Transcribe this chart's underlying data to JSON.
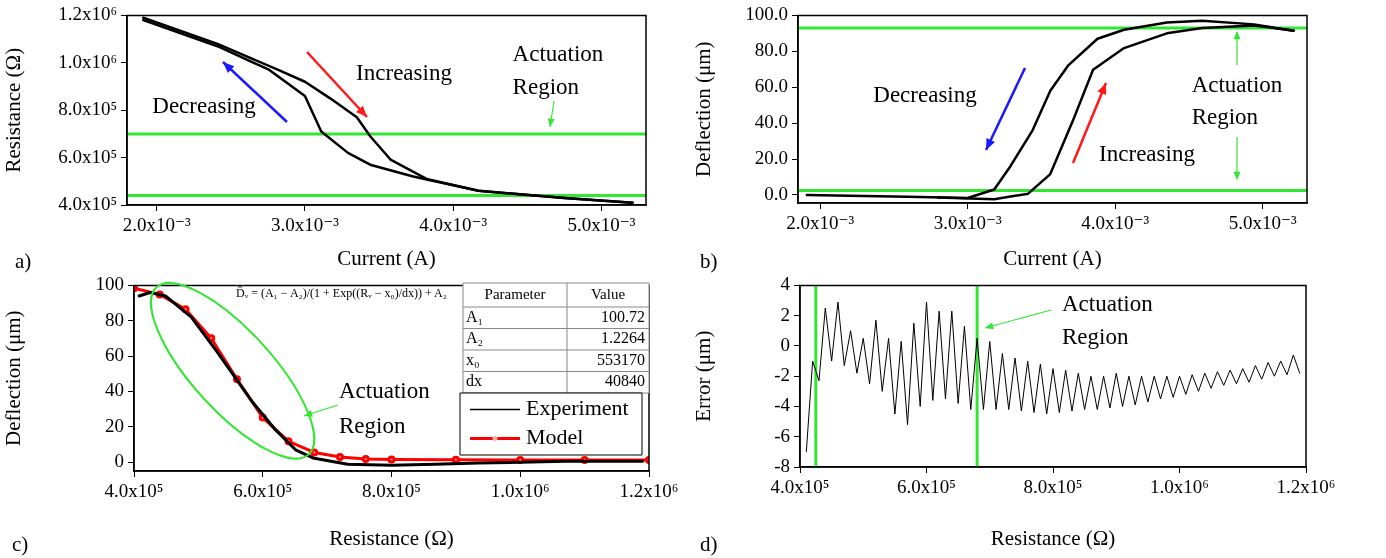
{
  "chart_data": [
    {
      "type": "line",
      "xlabel": "Current (A)",
      "ylabel": "Resistance (Ω)",
      "xlim": [
        0.0018,
        0.0053
      ],
      "ylim": [
        400000,
        1200000
      ],
      "xticks": [
        {
          "value": 0.002,
          "label": "2.0x10⁻³"
        },
        {
          "value": 0.003,
          "label": "3.0x10⁻³"
        },
        {
          "value": 0.004,
          "label": "4.0x10⁻³"
        },
        {
          "value": 0.005,
          "label": "5.0x10⁻³"
        }
      ],
      "yticks": [
        {
          "value": 400000,
          "label": "4.0x10⁵"
        },
        {
          "value": 600000,
          "label": "6.0x10⁵"
        },
        {
          "value": 800000,
          "label": "8.0x10⁵"
        },
        {
          "value": 1000000,
          "label": "1.0x10⁶"
        },
        {
          "value": 1200000,
          "label": "1.2x10⁶"
        }
      ],
      "series": [
        {
          "name": "Increasing",
          "color": "#000000",
          "x": [
            0.00191,
            0.00241,
            0.00282,
            0.003,
            0.00317,
            0.00335,
            0.00344,
            0.00358,
            0.00382,
            0.00417,
            0.00475,
            0.00521
          ],
          "values": [
            1190000,
            1080000,
            970000,
            920000,
            850000,
            770000,
            690000,
            590000,
            510000,
            460000,
            430000,
            410000
          ]
        },
        {
          "name": "Decreasing",
          "color": "#000000",
          "x": [
            0.00191,
            0.00241,
            0.00276,
            0.003,
            0.00311,
            0.00329,
            0.00344,
            0.00373,
            0.00417,
            0.00475,
            0.00521
          ],
          "values": [
            1180000,
            1070000,
            970000,
            860000,
            710000,
            620000,
            570000,
            520000,
            460000,
            430000,
            410000
          ]
        }
      ],
      "ref_lines": [
        {
          "axis": "y",
          "value": 700000,
          "color": "#33e633"
        },
        {
          "axis": "y",
          "value": 440000,
          "color": "#33e633"
        }
      ],
      "annotations": [
        "a)",
        {
          "text": "Actuation Region",
          "x": 0.00465,
          "y": 700000
        }
      ]
    },
    {
      "type": "line",
      "xlabel": "Current (A)",
      "ylabel": "Deflection (μm)",
      "xlim": [
        0.00185,
        0.0053
      ],
      "ylim": [
        -4.5,
        100
      ],
      "xticks": [
        {
          "value": 0.002,
          "label": "2.0x10⁻³"
        },
        {
          "value": 0.003,
          "label": "3.0x10⁻³"
        },
        {
          "value": 0.004,
          "label": "4.0x10⁻³"
        },
        {
          "value": 0.005,
          "label": "5.0x10⁻³"
        }
      ],
      "yticks": [
        {
          "value": 0,
          "label": "0.0"
        },
        {
          "value": 20,
          "label": "20.0"
        },
        {
          "value": 40,
          "label": "40.0"
        },
        {
          "value": 60,
          "label": "60.0"
        },
        {
          "value": 80,
          "label": "80.0"
        },
        {
          "value": 100,
          "label": "100.0"
        }
      ],
      "series": [
        {
          "name": "Decreasing",
          "color": "#000000",
          "x": [
            0.00191,
            0.00259,
            0.003,
            0.00318,
            0.00329,
            0.00344,
            0.00356,
            0.00368,
            0.00388,
            0.00406,
            0.00435,
            0.00459,
            0.00494,
            0.00521
          ],
          "values": [
            0,
            -1,
            -1.7,
            3,
            16,
            36,
            58,
            72,
            87,
            92,
            96,
            97,
            95,
            91.5
          ]
        },
        {
          "name": "Increasing",
          "color": "#000000",
          "x": [
            0.0028,
            0.00318,
            0.00341,
            0.00356,
            0.00371,
            0.00385,
            0.00406,
            0.00435,
            0.00459,
            0.00494,
            0.00521
          ],
          "values": [
            -1.5,
            -2.4,
            0.7,
            11.6,
            40.7,
            69.7,
            81.8,
            90,
            93,
            94.4,
            91.5
          ]
        }
      ],
      "ref_lines": [
        {
          "axis": "y",
          "value": 93,
          "color": "#33e633"
        },
        {
          "axis": "y",
          "value": 2.5,
          "color": "#33e633"
        }
      ],
      "annotations": [
        "b)",
        {
          "text": "Actuation Region",
          "x": 0.00483,
          "y": 93
        }
      ]
    },
    {
      "type": "line",
      "xlabel": "Resistance (Ω)",
      "ylabel": "Deflection (μm)",
      "xlim": [
        400000,
        1200000
      ],
      "ylim": [
        -5,
        100
      ],
      "xticks": [
        {
          "value": 400000,
          "label": "4.0x10⁵"
        },
        {
          "value": 600000,
          "label": "6.0x10⁵"
        },
        {
          "value": 800000,
          "label": "8.0x10⁵"
        },
        {
          "value": 1000000,
          "label": "1.0x10⁶"
        },
        {
          "value": 1200000,
          "label": "1.2x10⁶"
        }
      ],
      "yticks": [
        0,
        20,
        40,
        60,
        80,
        100
      ],
      "legend": "bottom right",
      "series": [
        {
          "name": "Experiment",
          "color": "#000000",
          "x": [
            408000,
            425000,
            449000,
            489000,
            530000,
            557000,
            584000,
            618000,
            651000,
            678000,
            732000,
            800000,
            868000,
            935000,
            1000000,
            1070000,
            1190000
          ],
          "values": [
            94,
            96,
            94,
            82,
            62,
            48,
            34,
            19,
            7,
            2.4,
            -1.2,
            -1.7,
            -1.2,
            -0.5,
            0,
            0.5,
            0.5
          ]
        },
        {
          "name": "Model",
          "color": "#ff0000",
          "marker": "circle",
          "x": [
            400000,
            440000,
            480000,
            520000,
            560000,
            600000,
            640000,
            680000,
            720000,
            760000,
            800000,
            900000,
            1000000,
            1100000,
            1200000
          ],
          "values": [
            98.4,
            94.9,
            86.5,
            70.1,
            46.9,
            25.2,
            11.8,
            5.5,
            2.9,
            1.8,
            1.5,
            1.3,
            1.2,
            1.2,
            1.2
          ]
        }
      ],
      "annotations": [
        "c)",
        "D̂ᵥ = (A₁ − A₂)/(1 + Exp((Rᵥ − x₀)/dx)) + A₂",
        "Parameter",
        "Value",
        "A₁",
        "100.72",
        "A₂",
        "1.2264",
        "x₀",
        "553170",
        "dx",
        "40840",
        "Actuation Region"
      ]
    },
    {
      "type": "line",
      "xlabel": "Resistance (Ω)",
      "ylabel": "Error (μm)",
      "xlim": [
        400000,
        1200000
      ],
      "ylim": [
        -8,
        4
      ],
      "xticks": [
        {
          "value": 400000,
          "label": "4.0x10⁵"
        },
        {
          "value": 600000,
          "label": "6.0x10⁵"
        },
        {
          "value": 800000,
          "label": "8.0x10⁵"
        },
        {
          "value": 1000000,
          "label": "1.0x10⁶"
        },
        {
          "value": 1200000,
          "label": "1.2x10⁶"
        }
      ],
      "yticks": [
        -8,
        -6,
        -4,
        -2,
        0,
        2,
        4
      ],
      "series": [
        {
          "color": "#000000",
          "x": [
            410000,
            420000,
            430000,
            440000,
            450000,
            460000,
            470000,
            480000,
            490000,
            500000,
            510000,
            520000,
            530000,
            540000,
            550000,
            560000,
            570000,
            580000,
            590000,
            600000,
            610000,
            620000,
            630000,
            640000,
            650000,
            660000,
            670000,
            680000,
            690000,
            700000,
            710000,
            720000,
            730000,
            740000,
            750000,
            760000,
            770000,
            780000,
            790000,
            800000,
            810000,
            820000,
            830000,
            840000,
            850000,
            860000,
            870000,
            880000,
            890000,
            900000,
            910000,
            920000,
            930000,
            940000,
            950000,
            960000,
            970000,
            980000,
            990000,
            1000000,
            1010000,
            1020000,
            1030000,
            1040000,
            1050000,
            1060000,
            1070000,
            1080000,
            1090000,
            1100000,
            1110000,
            1120000,
            1130000,
            1140000,
            1150000,
            1160000,
            1170000,
            1180000,
            1190000
          ],
          "values": [
            -7,
            -1,
            -2.3,
            2.5,
            -1,
            2.9,
            -1.3,
            1,
            -1.8,
            0.5,
            -2.5,
            1.7,
            -3,
            0.5,
            -4.5,
            0.3,
            -5.2,
            1.5,
            -4,
            2.9,
            -3.6,
            2.3,
            -3.5,
            2.3,
            -3.8,
            1.3,
            -4.2,
            0.5,
            -4.2,
            0.3,
            -4.2,
            -0.5,
            -4.2,
            -0.8,
            -4.3,
            -1,
            -4.4,
            -1.2,
            -4.5,
            -1.5,
            -4.4,
            -1.6,
            -4.3,
            -1.8,
            -4.2,
            -2,
            -4.2,
            -2,
            -4.1,
            -1.8,
            -4,
            -2,
            -3.9,
            -2,
            -3.7,
            -2,
            -3.5,
            -2,
            -3.4,
            -2,
            -3.2,
            -1.9,
            -3,
            -1.8,
            -2.8,
            -1.7,
            -2.6,
            -1.6,
            -2.5,
            -1.5,
            -2.4,
            -1.3,
            -2.2,
            -1.1,
            -2,
            -1,
            -1.9,
            -0.6,
            -1.8
          ]
        }
      ],
      "ref_lines": [
        {
          "axis": "x",
          "value": 425000,
          "color": "#33e633"
        },
        {
          "axis": "x",
          "value": 680000,
          "color": "#33e633"
        }
      ],
      "annotations": [
        "d)",
        "Actuation Region"
      ]
    }
  ]
}
